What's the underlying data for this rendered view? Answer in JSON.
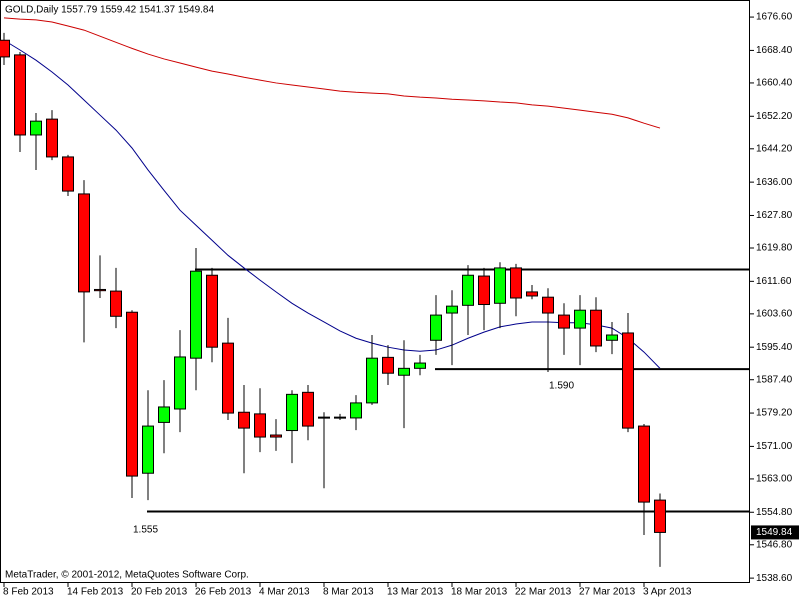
{
  "chart_data": {
    "type": "candlestick",
    "title": "GOLD,Daily  1557.79 1559.42 1541.37 1549.84",
    "footer": "MetaTrader, © 2001-2012, MetaQuotes Software Corp.",
    "categories": [
      "8 Feb 2013",
      null,
      null,
      null,
      "14 Feb 2013",
      null,
      null,
      null,
      "20 Feb 2013",
      null,
      null,
      null,
      "26 Feb 2013",
      null,
      null,
      null,
      "4 Mar 2013",
      null,
      null,
      null,
      "8 Mar 2013",
      null,
      null,
      null,
      "13 Mar 2013",
      null,
      null,
      null,
      "18 Mar 2013",
      null,
      null,
      null,
      "22 Mar 2013",
      null,
      null,
      null,
      "27 Mar 2013",
      null,
      null,
      null,
      "3 Apr 2013",
      null
    ],
    "up_color": "#00ff00",
    "down_color": "#ff0000",
    "open": [
      1670.9,
      1667.3,
      1647.6,
      1651.5,
      1642.2,
      1633.1,
      1609.6,
      1609.2,
      1604.0,
      1564.4,
      1576.9,
      1580.2,
      1592.7,
      1613.1,
      1596.4,
      1579.4,
      1579.0,
      1573.8,
      1574.9,
      1584.3,
      1578.0,
      1578.2,
      1578.0,
      1581.7,
      1592.9,
      1588.5,
      1590.2,
      1597.1,
      1603.8,
      1605.7,
      1612.9,
      1606.2,
      1614.9,
      1609.0,
      1607.7,
      1603.3,
      1600.1,
      1604.5,
      1597.1,
      1598.9,
      1576.0,
      1557.79
    ],
    "high": [
      1672.7,
      1668.0,
      1653.0,
      1653.7,
      1642.7,
      1636.5,
      1618.0,
      1614.9,
      1604.5,
      1584.8,
      1587.3,
      1599.6,
      1619.8,
      1614.9,
      1602.6,
      1586.1,
      1585.3,
      1577.7,
      1584.8,
      1586.1,
      1579.4,
      1579.0,
      1583.6,
      1598.4,
      1595.9,
      1597.1,
      1593.5,
      1608.2,
      1609.4,
      1615.6,
      1614.9,
      1616.3,
      1615.9,
      1610.7,
      1609.9,
      1606.2,
      1608.2,
      1607.7,
      1601.6,
      1603.8,
      1576.5,
      1559.42
    ],
    "low": [
      1664.8,
      1643.4,
      1639.0,
      1641.4,
      1632.6,
      1596.6,
      1607.5,
      1600.1,
      1558.3,
      1557.8,
      1569.3,
      1574.5,
      1584.8,
      1591.7,
      1577.5,
      1564.4,
      1569.6,
      1569.9,
      1566.9,
      1572.5,
      1560.7,
      1577.5,
      1575.0,
      1581.2,
      1586.1,
      1575.5,
      1588.5,
      1593.5,
      1591.0,
      1598.4,
      1599.6,
      1600.1,
      1603.0,
      1607.2,
      1589.3,
      1593.5,
      1591.0,
      1594.2,
      1593.7,
      1574.5,
      1549.2,
      1541.37
    ],
    "close": [
      1666.8,
      1647.6,
      1651.0,
      1642.2,
      1633.8,
      1609.0,
      1609.3,
      1603.0,
      1563.7,
      1576.0,
      1580.7,
      1593.0,
      1614.1,
      1595.4,
      1579.2,
      1575.5,
      1573.3,
      1573.3,
      1583.8,
      1576.0,
      1578.2,
      1578.0,
      1581.7,
      1592.7,
      1589.0,
      1590.2,
      1591.5,
      1603.3,
      1605.5,
      1613.1,
      1605.9,
      1614.9,
      1607.5,
      1608.0,
      1603.8,
      1600.1,
      1604.5,
      1595.7,
      1598.4,
      1575.5,
      1557.3,
      1549.84
    ],
    "lines": [
      {
        "color": "#00008b",
        "values": [
          1670.9,
          1668.5,
          1666.0,
          1663.1,
          1659.9,
          1656.2,
          1652.5,
          1648.8,
          1644.4,
          1639.0,
          1634.0,
          1629.1,
          1625.4,
          1621.7,
          1618.0,
          1614.9,
          1611.9,
          1609.0,
          1606.2,
          1603.8,
          1601.6,
          1599.4,
          1597.6,
          1596.4,
          1595.4,
          1594.7,
          1594.4,
          1594.7,
          1595.9,
          1597.6,
          1599.1,
          1600.4,
          1601.1,
          1601.6,
          1601.6,
          1601.4,
          1601.4,
          1600.9,
          1600.1,
          1597.6,
          1594.2,
          1590.2
        ]
      },
      {
        "color": "#cc0000",
        "values": [
          1676.4,
          1676.1,
          1675.9,
          1675.4,
          1674.4,
          1673.4,
          1671.9,
          1670.4,
          1668.9,
          1667.5,
          1666.3,
          1665.3,
          1664.3,
          1663.3,
          1662.6,
          1661.8,
          1661.1,
          1660.4,
          1659.9,
          1659.4,
          1658.9,
          1658.4,
          1658.1,
          1657.9,
          1657.7,
          1657.2,
          1656.9,
          1656.7,
          1656.4,
          1656.2,
          1656.0,
          1655.7,
          1655.5,
          1655.0,
          1654.7,
          1654.2,
          1653.7,
          1653.2,
          1652.7,
          1651.8,
          1650.5,
          1649.3
        ]
      }
    ],
    "levels": [
      {
        "value": 1614.5
      },
      {
        "value": 1590,
        "label": "1.590"
      },
      {
        "value": 1555,
        "label": "1.555"
      }
    ],
    "ylim": [
      1537.4,
      1680.8
    ],
    "yticks": [
      {
        "value": 1676.6,
        "label": "1676.60"
      },
      {
        "value": 1668.4,
        "label": "1668.40"
      },
      {
        "value": 1660.4,
        "label": "1660.40"
      },
      {
        "value": 1652.2,
        "label": "1652.20"
      },
      {
        "value": 1644.2,
        "label": "1644.20"
      },
      {
        "value": 1636.0,
        "label": "1636.00"
      },
      {
        "value": 1627.8,
        "label": "1627.80"
      },
      {
        "value": 1619.8,
        "label": "1619.80"
      },
      {
        "value": 1611.6,
        "label": "1611.60"
      },
      {
        "value": 1603.6,
        "label": "1603.60"
      },
      {
        "value": 1595.4,
        "label": "1595.40"
      },
      {
        "value": 1587.4,
        "label": "1587.40"
      },
      {
        "value": 1579.2,
        "label": "1579.20"
      },
      {
        "value": 1571.0,
        "label": "1571.00"
      },
      {
        "value": 1563.0,
        "label": "1563.00"
      },
      {
        "value": 1554.8,
        "label": "1554.80"
      },
      {
        "value": 1546.8,
        "label": "1546.80"
      },
      {
        "value": 1538.6,
        "label": "1538.60"
      }
    ],
    "grid": false
  }
}
